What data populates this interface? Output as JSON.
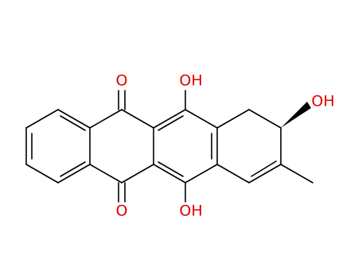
{
  "labels": [
    "O",
    "O",
    "OH",
    "OH",
    "OH"
  ]
}
